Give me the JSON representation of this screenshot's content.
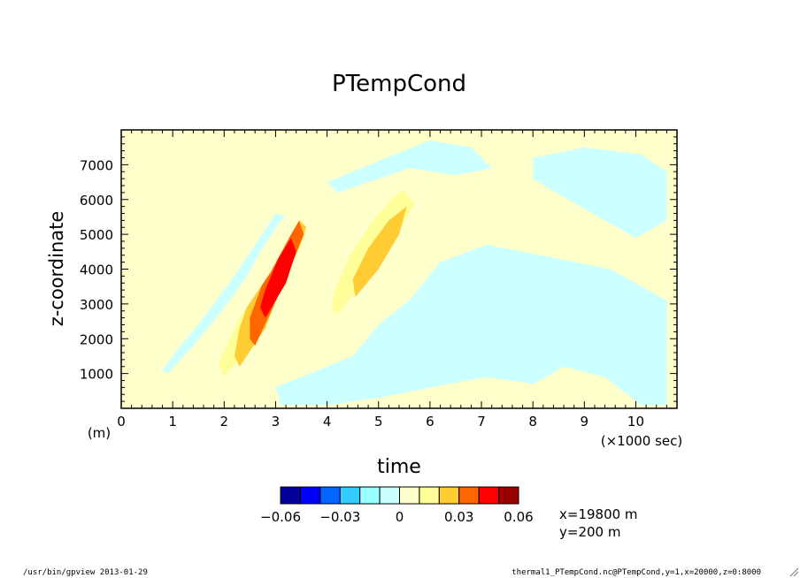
{
  "footer": {
    "left": "/usr/bin/gpview  2013-01-29",
    "right": "thermal1_PTempCond.nc@PTempCond,y=1,x=20000,z=0:8000"
  },
  "chart_data": {
    "type": "heatmap",
    "title": "PTempCond",
    "xlabel": "time",
    "ylabel": "z-coordinate",
    "x_unit_label": "(×1000 sec)",
    "y_unit_label": "(m)",
    "xlim": [
      0,
      10.8
    ],
    "ylim": [
      0,
      8000
    ],
    "x_ticks": [
      0,
      1,
      2,
      3,
      4,
      5,
      6,
      7,
      8,
      9,
      10
    ],
    "x_tick_labels": [
      "0",
      "1",
      "2",
      "3",
      "4",
      "5",
      "6",
      "7",
      "8",
      "9",
      "10"
    ],
    "y_ticks": [
      1000,
      2000,
      3000,
      4000,
      5000,
      6000,
      7000
    ],
    "y_tick_labels": [
      "1000",
      "2000",
      "3000",
      "4000",
      "5000",
      "6000",
      "7000"
    ],
    "colorbar": {
      "levels": [
        -0.06,
        -0.05,
        -0.04,
        -0.03,
        -0.02,
        -0.01,
        0,
        0.01,
        0.02,
        0.03,
        0.04,
        0.05,
        0.06
      ],
      "colors": [
        "#000099",
        "#0000ff",
        "#0066ff",
        "#33ccff",
        "#99ffff",
        "#ccffff",
        "#ffffcc",
        "#ffff99",
        "#ffcc33",
        "#ff6600",
        "#ff0000",
        "#990000"
      ],
      "tick_values": [
        -0.06,
        -0.03,
        0,
        0.03,
        0.06
      ],
      "tick_labels": [
        "−0.06",
        "−0.03",
        "0",
        "0.03",
        "0.06"
      ]
    },
    "annotations": [
      "x=19800 m",
      "y=200 m"
    ],
    "positive_regions": [
      {
        "name": "first-thermal-envelope",
        "level": 0.005,
        "polygon": [
          [
            1.6,
            700
          ],
          [
            2.2,
            1500
          ],
          [
            2.7,
            2600
          ],
          [
            3.1,
            3700
          ],
          [
            3.5,
            4700
          ],
          [
            3.8,
            5600
          ],
          [
            3.6,
            5900
          ],
          [
            3.1,
            5400
          ],
          [
            2.7,
            4500
          ],
          [
            2.3,
            3400
          ],
          [
            2.0,
            2200
          ],
          [
            1.6,
            1100
          ],
          [
            1.5,
            800
          ]
        ]
      },
      {
        "name": "first-thermal-weak",
        "level": 0.015,
        "polygon": [
          [
            2.0,
            900
          ],
          [
            2.5,
            1800
          ],
          [
            2.9,
            3000
          ],
          [
            3.3,
            4100
          ],
          [
            3.6,
            5000
          ],
          [
            3.5,
            5400
          ],
          [
            3.1,
            4800
          ],
          [
            2.7,
            3800
          ],
          [
            2.3,
            2600
          ],
          [
            1.9,
            1300
          ]
        ]
      },
      {
        "name": "first-thermal-moderate",
        "level": 0.025,
        "polygon": [
          [
            2.3,
            1200
          ],
          [
            2.8,
            2300
          ],
          [
            3.1,
            3500
          ],
          [
            3.4,
            4500
          ],
          [
            3.6,
            5200
          ],
          [
            3.4,
            5500
          ],
          [
            3.0,
            4800
          ],
          [
            2.6,
            3600
          ],
          [
            2.3,
            2300
          ],
          [
            2.2,
            1500
          ]
        ]
      },
      {
        "name": "first-thermal-strong",
        "level": 0.035,
        "polygon": [
          [
            2.6,
            1800
          ],
          [
            2.95,
            2900
          ],
          [
            3.25,
            3900
          ],
          [
            3.55,
            5000
          ],
          [
            3.45,
            5400
          ],
          [
            3.1,
            4800
          ],
          [
            2.8,
            3800
          ],
          [
            2.5,
            2600
          ],
          [
            2.5,
            2000
          ]
        ]
      },
      {
        "name": "first-thermal-core",
        "level": 0.045,
        "polygon": [
          [
            2.8,
            2600
          ],
          [
            3.2,
            3600
          ],
          [
            3.4,
            4500
          ],
          [
            3.3,
            4900
          ],
          [
            3.05,
            4300
          ],
          [
            2.8,
            3400
          ],
          [
            2.7,
            2900
          ]
        ]
      },
      {
        "name": "second-thermal-envelope",
        "level": 0.005,
        "polygon": [
          [
            4.1,
            2600
          ],
          [
            4.7,
            3800
          ],
          [
            5.3,
            4900
          ],
          [
            5.85,
            6100
          ],
          [
            5.6,
            6500
          ],
          [
            5.0,
            5800
          ],
          [
            4.5,
            4800
          ],
          [
            4.1,
            3600
          ],
          [
            3.9,
            2900
          ]
        ]
      },
      {
        "name": "second-thermal-weak",
        "level": 0.015,
        "polygon": [
          [
            4.2,
            2700
          ],
          [
            4.8,
            3800
          ],
          [
            5.3,
            4800
          ],
          [
            5.7,
            5900
          ],
          [
            5.45,
            6300
          ],
          [
            4.95,
            5500
          ],
          [
            4.45,
            4400
          ],
          [
            4.15,
            3400
          ],
          [
            4.1,
            2900
          ]
        ]
      },
      {
        "name": "second-thermal-moderate",
        "level": 0.025,
        "polygon": [
          [
            4.55,
            3200
          ],
          [
            5.0,
            4000
          ],
          [
            5.4,
            5000
          ],
          [
            5.55,
            5800
          ],
          [
            5.2,
            5400
          ],
          [
            4.8,
            4600
          ],
          [
            4.5,
            3700
          ]
        ]
      },
      {
        "name": "outer-plume-band",
        "level": 0.0,
        "polygon": [
          [
            1.0,
            300
          ],
          [
            1.7,
            1300
          ],
          [
            2.3,
            2600
          ],
          [
            2.9,
            3900
          ],
          [
            3.3,
            5000
          ],
          [
            3.7,
            6000
          ],
          [
            3.9,
            6300
          ],
          [
            3.5,
            6000
          ],
          [
            3.0,
            5100
          ],
          [
            2.5,
            3900
          ],
          [
            1.9,
            2500
          ],
          [
            1.3,
            1200
          ],
          [
            0.9,
            600
          ]
        ]
      }
    ],
    "negative_regions": [
      {
        "name": "lower-right-region",
        "level": -0.005,
        "polygon": [
          [
            3.0,
            600
          ],
          [
            4.5,
            1500
          ],
          [
            5.0,
            2400
          ],
          [
            5.6,
            3100
          ],
          [
            6.2,
            4200
          ],
          [
            7.1,
            4700
          ],
          [
            8.5,
            4300
          ],
          [
            9.5,
            4000
          ],
          [
            10.6,
            3100
          ],
          [
            10.6,
            100
          ],
          [
            10.1,
            100
          ],
          [
            9.4,
            900
          ],
          [
            8.6,
            1200
          ],
          [
            8.0,
            700
          ],
          [
            7.1,
            900
          ],
          [
            6.0,
            600
          ],
          [
            5.0,
            300
          ],
          [
            4.0,
            100
          ],
          [
            3.1,
            100
          ]
        ]
      },
      {
        "name": "upper-right-region",
        "level": -0.005,
        "polygon": [
          [
            8.0,
            7200
          ],
          [
            9.0,
            7500
          ],
          [
            10.1,
            7300
          ],
          [
            10.6,
            6800
          ],
          [
            10.6,
            5400
          ],
          [
            10.0,
            4900
          ],
          [
            8.8,
            5900
          ],
          [
            8.0,
            6600
          ]
        ]
      },
      {
        "name": "top-band",
        "level": -0.005,
        "polygon": [
          [
            4.0,
            6500
          ],
          [
            5.0,
            7100
          ],
          [
            6.0,
            7700
          ],
          [
            6.8,
            7500
          ],
          [
            7.2,
            6900
          ],
          [
            6.5,
            6700
          ],
          [
            5.6,
            6900
          ],
          [
            4.8,
            6500
          ],
          [
            4.2,
            6200
          ]
        ]
      },
      {
        "name": "left-wing-streaks",
        "level": -0.005,
        "polygon": [
          [
            0.9,
            1000
          ],
          [
            1.4,
            1800
          ],
          [
            1.9,
            2700
          ],
          [
            2.4,
            3700
          ],
          [
            2.9,
            4700
          ],
          [
            3.2,
            5500
          ],
          [
            3.0,
            5600
          ],
          [
            2.6,
            4700
          ],
          [
            2.1,
            3600
          ],
          [
            1.6,
            2600
          ],
          [
            1.1,
            1700
          ],
          [
            0.8,
            1100
          ]
        ]
      }
    ]
  }
}
